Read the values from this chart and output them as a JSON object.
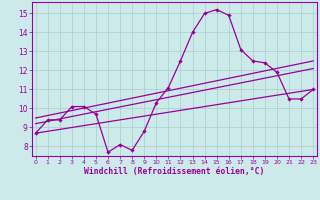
{
  "xlabel": "Windchill (Refroidissement éolien,°C)",
  "bg_color": "#cceaea",
  "line_color": "#990099",
  "grid_color": "#aacccc",
  "spine_color": "#9900aa",
  "x_ticks": [
    0,
    1,
    2,
    3,
    4,
    5,
    6,
    7,
    8,
    9,
    10,
    11,
    12,
    13,
    14,
    15,
    16,
    17,
    18,
    19,
    20,
    21,
    22,
    23
  ],
  "y_ticks": [
    8,
    9,
    10,
    11,
    12,
    13,
    14,
    15
  ],
  "ylim": [
    7.5,
    15.6
  ],
  "xlim": [
    -0.3,
    23.3
  ],
  "line1_x": [
    0,
    1,
    2,
    3,
    4,
    5,
    6,
    7,
    8,
    9,
    10,
    11,
    12,
    13,
    14,
    15,
    16,
    17,
    18,
    19,
    20,
    21,
    22,
    23
  ],
  "line1_y": [
    8.7,
    9.4,
    9.4,
    10.1,
    10.1,
    9.7,
    7.7,
    8.1,
    7.8,
    8.8,
    10.3,
    11.1,
    12.5,
    14.0,
    15.0,
    15.2,
    14.9,
    13.1,
    12.5,
    12.4,
    11.9,
    10.5,
    10.5,
    11.0
  ],
  "reg_line1_x": [
    0,
    23
  ],
  "reg_line1_y": [
    8.7,
    11.0
  ],
  "reg_line2_x": [
    0,
    23
  ],
  "reg_line2_y": [
    9.2,
    12.1
  ],
  "reg_line3_x": [
    0,
    23
  ],
  "reg_line3_y": [
    9.5,
    12.5
  ]
}
